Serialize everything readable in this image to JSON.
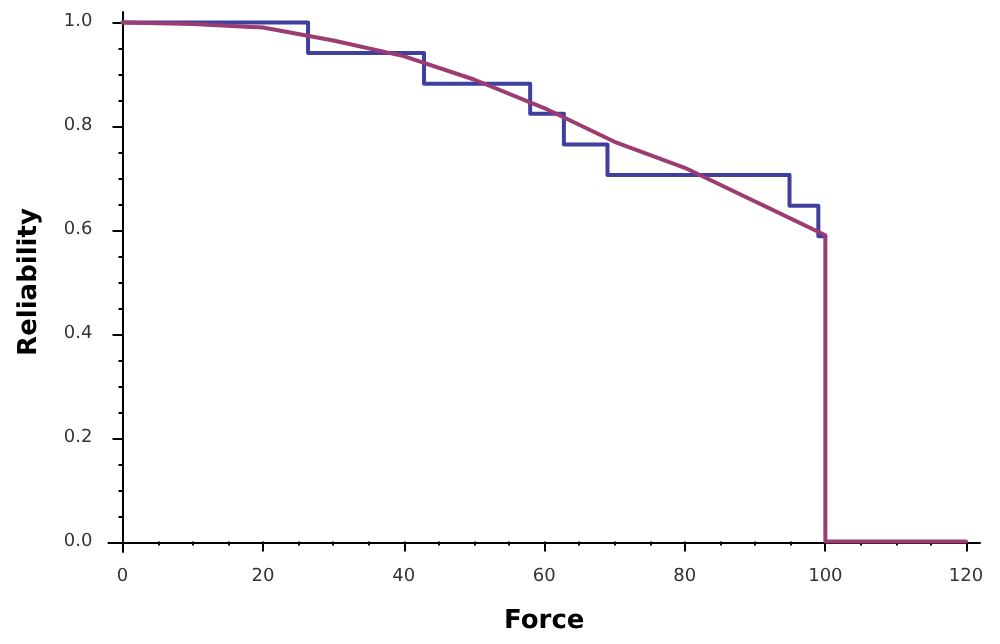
{
  "chart_data": {
    "type": "line",
    "xlabel": "Force",
    "ylabel": "Reliability",
    "xlim": [
      -2,
      122
    ],
    "xticks": [
      0,
      20,
      40,
      60,
      80,
      100,
      120
    ],
    "ylim": [
      -0.02,
      1.02
    ],
    "yticks": [
      {
        "value": 0,
        "label": "0.0"
      },
      {
        "value": 0.2,
        "label": "0.2"
      },
      {
        "value": 0.4,
        "label": "0.4"
      },
      {
        "value": 0.6,
        "label": "0.6"
      },
      {
        "value": 0.8,
        "label": "0.8"
      },
      {
        "value": 1,
        "label": "1.0"
      }
    ],
    "grid": false,
    "marker": "none",
    "line_style": "solid",
    "series": [
      {
        "type": "step",
        "color": "#3f3f9e",
        "x": [
          0,
          26.4,
          42.9,
          58,
          62.8,
          69,
          94.9,
          99,
          100
        ],
        "values": [
          1,
          0.941,
          0.882,
          0.824,
          0.765,
          0.706,
          0.647,
          0.588,
          0.588
        ]
      },
      {
        "color": "#9b3c72",
        "x": [
          0,
          10,
          20,
          30,
          40,
          50,
          60,
          70,
          80,
          90,
          100,
          100,
          120
        ],
        "values": [
          1,
          0.997,
          0.99,
          0.965,
          0.935,
          0.89,
          0.835,
          0.77,
          0.72,
          0.655,
          0.59,
          0,
          0
        ]
      }
    ]
  }
}
